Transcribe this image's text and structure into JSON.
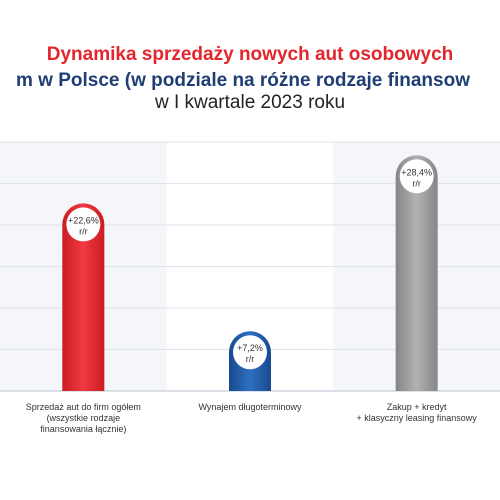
{
  "title": {
    "line1": "Dynamika sprzedaży nowych aut osobowych",
    "line2": "m w Polsce (w podziale na różne rodzaje finansow",
    "line3": "w I kwartale 2023 roku"
  },
  "chart_data": {
    "type": "bar",
    "title": "Dynamika sprzedaży nowych aut osobowych m w Polsce (w podziale na różne rodzaje finansow w I kwartale 2023 roku",
    "categories": [
      "Sprzedaż aut do firm ogółem (wszystkie rodzaje finansowania łącznie)",
      "Wynajem długoterminowy",
      "Zakup + kredyt + klasyczny leasing finansowy"
    ],
    "category_lines": [
      [
        "Sprzedaż aut do firm ogółem",
        "(wszystkie rodzaje",
        "finansowania łącznie)"
      ],
      [
        "Wynajem długoterminowy"
      ],
      [
        "Zakup + kredyt",
        "+ klasyczny leasing finansowy"
      ]
    ],
    "values": [
      22.6,
      7.2,
      28.4
    ],
    "value_labels": [
      "+22,6%",
      "+7,2%",
      "+28,4%"
    ],
    "value_unit": "r/r",
    "colors": [
      "#e3262d",
      "#1f5aa6",
      "#9a9a9a"
    ],
    "ylim": [
      0,
      30
    ],
    "grid": true
  }
}
